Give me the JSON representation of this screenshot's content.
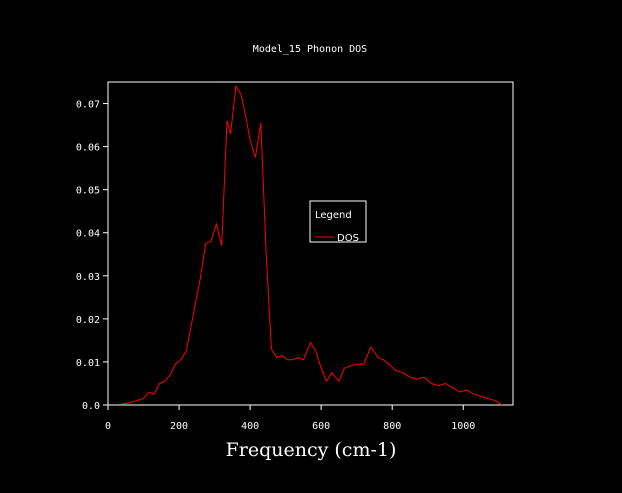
{
  "chart_data": {
    "type": "line",
    "title": "Model_15 Phonon DOS",
    "xlabel": "Frequency (cm-1)",
    "ylabel": "",
    "xlim": [
      0,
      1140
    ],
    "ylim": [
      0,
      0.075
    ],
    "xticks": [
      0,
      200,
      400,
      600,
      800,
      1000
    ],
    "yticks": [
      0.0,
      0.01,
      0.02,
      0.03,
      0.04,
      0.05,
      0.06,
      0.07
    ],
    "ytick_labels": [
      "0.0",
      "0.01",
      "0.02",
      "0.03",
      "0.04",
      "0.05",
      "0.06",
      "0.07"
    ],
    "grid": false,
    "legend": {
      "title": "Legend",
      "position": "center-right"
    },
    "series": [
      {
        "name": "DOS",
        "color": "#ff0000",
        "x": [
          40,
          60,
          80,
          100,
          115,
          130,
          145,
          160,
          175,
          190,
          205,
          220,
          240,
          260,
          275,
          290,
          305,
          320,
          335,
          345,
          360,
          375,
          390,
          400,
          415,
          430,
          445,
          460,
          475,
          490,
          505,
          520,
          535,
          550,
          570,
          585,
          600,
          615,
          630,
          650,
          665,
          680,
          700,
          720,
          740,
          760,
          775,
          790,
          810,
          830,
          850,
          870,
          890,
          910,
          930,
          950,
          970,
          990,
          1010,
          1030,
          1050,
          1070,
          1090,
          1110
        ],
        "values": [
          0.0002,
          0.0005,
          0.001,
          0.0015,
          0.003,
          0.0025,
          0.005,
          0.0055,
          0.007,
          0.0095,
          0.0105,
          0.0125,
          0.021,
          0.0295,
          0.0375,
          0.038,
          0.042,
          0.037,
          0.066,
          0.063,
          0.074,
          0.072,
          0.066,
          0.0615,
          0.0575,
          0.0655,
          0.0355,
          0.013,
          0.011,
          0.0115,
          0.0105,
          0.0105,
          0.011,
          0.0105,
          0.0145,
          0.0125,
          0.0085,
          0.0055,
          0.0075,
          0.0055,
          0.0085,
          0.009,
          0.0095,
          0.0095,
          0.0135,
          0.011,
          0.0105,
          0.0095,
          0.008,
          0.0075,
          0.0065,
          0.006,
          0.0065,
          0.005,
          0.0045,
          0.005,
          0.004,
          0.003,
          0.0035,
          0.0025,
          0.002,
          0.0015,
          0.001,
          0.0
        ]
      }
    ]
  }
}
